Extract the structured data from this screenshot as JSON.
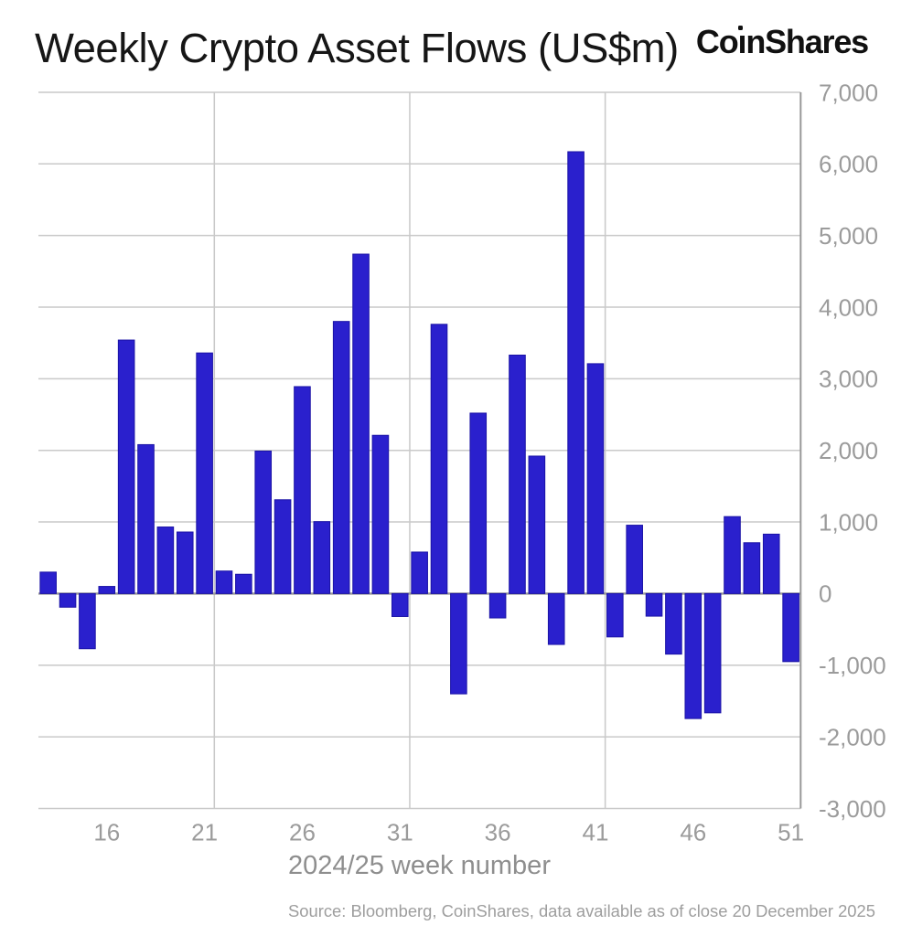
{
  "header": {
    "title": "Weekly Crypto Asset Flows (US$m)",
    "logo": "CoinShares"
  },
  "footer": {
    "source": "Source: Bloomberg, CoinShares, data available as of close 20 December 2025"
  },
  "chart_data": {
    "type": "bar",
    "title": "Weekly Crypto Asset Flows (US$m)",
    "xlabel": "2024/25 week number",
    "ylabel": "",
    "x": [
      13,
      14,
      15,
      16,
      17,
      18,
      19,
      20,
      21,
      22,
      23,
      24,
      25,
      26,
      27,
      28,
      29,
      30,
      31,
      32,
      33,
      34,
      35,
      36,
      37,
      38,
      39,
      40,
      41,
      42,
      43,
      44,
      45,
      46,
      47,
      48,
      49,
      50,
      51
    ],
    "values": [
      300,
      -190,
      -770,
      100,
      3540,
      2080,
      930,
      860,
      3360,
      315,
      270,
      1990,
      1310,
      2890,
      1005,
      3800,
      4740,
      2210,
      -320,
      580,
      3760,
      -1400,
      2520,
      -340,
      3330,
      1920,
      -710,
      6170,
      3210,
      -605,
      955,
      -315,
      -845,
      -1745,
      -1665,
      1075,
      710,
      830,
      -950
    ],
    "ylim": [
      -3000,
      7000
    ],
    "y_tick_values": [
      7000,
      6000,
      5000,
      4000,
      3000,
      2000,
      1000,
      0,
      -1000,
      -2000,
      -3000
    ],
    "y_tick_labels": [
      "7,000",
      "6,000",
      "5,000",
      "4,000",
      "3,000",
      "2,000",
      "1,000",
      "0",
      "-1,000",
      "-2,000",
      "-3,000"
    ],
    "x_tick_weeks": [
      16,
      21,
      26,
      31,
      36,
      41,
      46,
      51
    ],
    "x_tick_labels": [
      "16",
      "21",
      "26",
      "31",
      "36",
      "41",
      "46",
      "51"
    ],
    "vertical_gridlines_after_weeks": [
      21,
      31,
      41
    ],
    "grid": true,
    "legend": false,
    "colors": {
      "bar": "#2a20cd",
      "bar_border": "#1b13a6",
      "gridline": "#c9c9c9",
      "axis_line": "#999999",
      "tick_label": "#9b9b9b",
      "title": "#161616",
      "axis_title": "#8e8e8e",
      "source": "#9e9e9e",
      "background": "#ffffff"
    }
  }
}
